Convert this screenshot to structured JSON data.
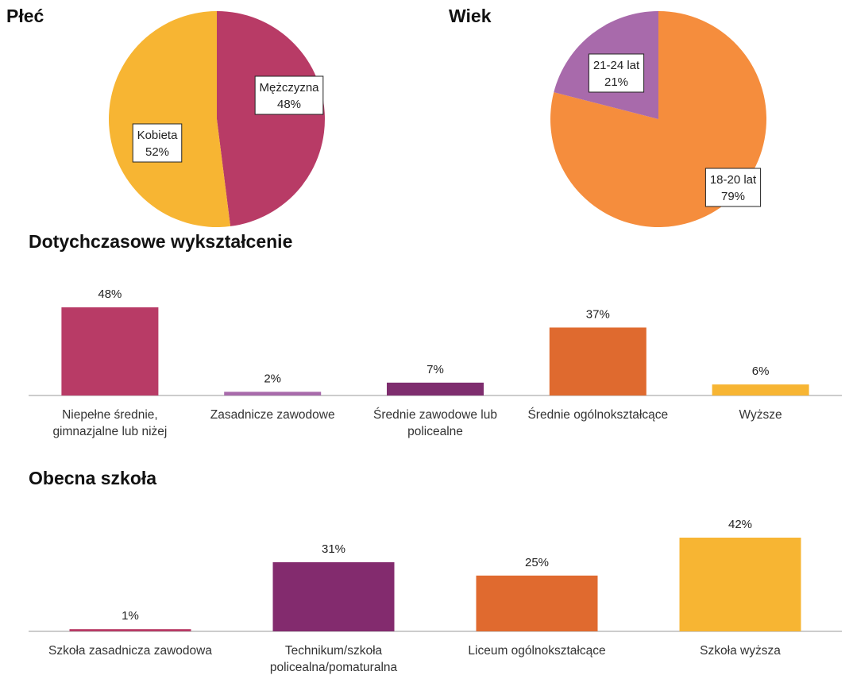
{
  "chart_data": [
    {
      "type": "pie",
      "title": "Płeć",
      "categories": [
        "Mężczyzna",
        "Kobieta"
      ],
      "values": [
        48,
        52
      ],
      "value_labels": [
        "48%",
        "52%"
      ],
      "colors": [
        "#b83b66",
        "#f7b533"
      ]
    },
    {
      "type": "pie",
      "title": "Wiek",
      "categories": [
        "18-20 lat",
        "21-24 lat"
      ],
      "values": [
        79,
        21
      ],
      "value_labels": [
        "79%",
        "21%"
      ],
      "colors": [
        "#f58d3d",
        "#a86aab"
      ]
    },
    {
      "type": "bar",
      "title": "Dotychczasowe wykształcenie",
      "categories": [
        "Niepełne średnie, gimnazjalne lub niżej",
        "Zasadnicze zawodowe",
        "Średnie zawodowe lub policealne",
        "Średnie ogólnokształcące",
        "Wyższe"
      ],
      "values": [
        48,
        2,
        7,
        37,
        6
      ],
      "value_labels": [
        "48%",
        "2%",
        "7%",
        "37%",
        "6%"
      ],
      "colors": [
        "#b83b66",
        "#a86aab",
        "#7e2d6e",
        "#df6a2f",
        "#f7b533"
      ]
    },
    {
      "type": "bar",
      "title": "Obecna szkoła",
      "categories": [
        "Szkoła zasadnicza zawodowa",
        "Technikum/szkoła policealna/pomaturalna",
        "Liceum ogólnokształcące",
        "Szkoła wyższa"
      ],
      "values": [
        1,
        31,
        25,
        42
      ],
      "value_labels": [
        "1%",
        "31%",
        "25%",
        "42%"
      ],
      "colors": [
        "#b83b66",
        "#832b6e",
        "#e06a2f",
        "#f7b533"
      ]
    }
  ]
}
